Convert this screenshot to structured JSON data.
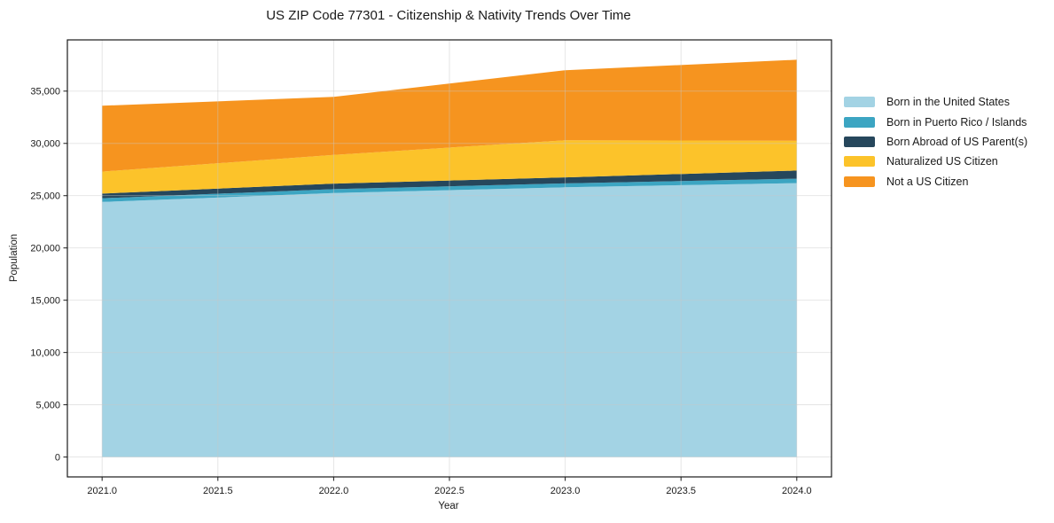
{
  "chart_data": {
    "type": "area",
    "stacked": true,
    "title": "US ZIP Code 77301 - Citizenship & Nativity Trends Over Time",
    "xlabel": "Year",
    "ylabel": "Population",
    "x": [
      2021,
      2022,
      2023,
      2024
    ],
    "series": [
      {
        "name": "Born in the United States",
        "color": "#a3d3e4",
        "values": [
          24400,
          25250,
          25800,
          26200
        ]
      },
      {
        "name": "Born in Puerto Rico / Islands",
        "color": "#3ca5c2",
        "values": [
          350,
          375,
          375,
          425
        ]
      },
      {
        "name": "Born Abroad of US Parent(s)",
        "color": "#26475c",
        "values": [
          450,
          525,
          575,
          775
        ]
      },
      {
        "name": "Naturalized US Citizen",
        "color": "#fcc32a",
        "values": [
          2100,
          2750,
          3550,
          2850
        ]
      },
      {
        "name": "Not a US Citizen",
        "color": "#f6941f",
        "values": [
          6300,
          5550,
          6700,
          7750
        ]
      }
    ],
    "totals": [
      33600,
      34450,
      37000,
      38000
    ],
    "xlim": [
      2020.85,
      2024.15
    ],
    "ylim": [
      -1900,
      39900
    ],
    "x_ticks": [
      {
        "v": 2021.0,
        "label": "2021.0"
      },
      {
        "v": 2021.5,
        "label": "2021.5"
      },
      {
        "v": 2022.0,
        "label": "2022.0"
      },
      {
        "v": 2022.5,
        "label": "2022.5"
      },
      {
        "v": 2023.0,
        "label": "2023.0"
      },
      {
        "v": 2023.5,
        "label": "2023.5"
      },
      {
        "v": 2024.0,
        "label": "2024.0"
      }
    ],
    "y_ticks": [
      {
        "v": 0,
        "label": "0"
      },
      {
        "v": 5000,
        "label": "5,000"
      },
      {
        "v": 10000,
        "label": "10,000"
      },
      {
        "v": 15000,
        "label": "15,000"
      },
      {
        "v": 20000,
        "label": "20,000"
      },
      {
        "v": 25000,
        "label": "25,000"
      },
      {
        "v": 30000,
        "label": "30,000"
      },
      {
        "v": 35000,
        "label": "35,000"
      }
    ],
    "grid": true,
    "legend_position": "right-outside",
    "colors": {
      "background": "#ffffff",
      "spine": "#1a1a1a",
      "grid": "#c8c8c8",
      "text": "#1a1a1a"
    }
  }
}
